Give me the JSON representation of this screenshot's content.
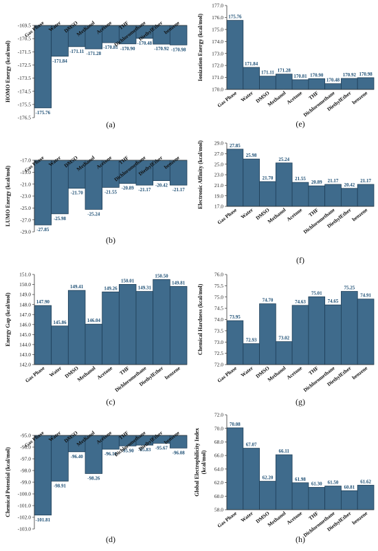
{
  "colors": {
    "bar": "#3f6b8c",
    "bar_edge": "#1f3f58",
    "label": "#1c4e74",
    "axis": "#333333"
  },
  "chart_data": [
    {
      "id": "a",
      "panel_label": "(a)",
      "type": "bar",
      "orientation": "down",
      "ylabel": "HOMO Energy (kcal/mol)",
      "categories": [
        "Gas Phase",
        "Water",
        "DMSO",
        "Methanol",
        "Acetone",
        "THF",
        "Dichloromethane",
        "DiethylEther",
        "benzene"
      ],
      "values": [
        -175.76,
        -171.84,
        -171.11,
        -171.28,
        -170.81,
        -170.9,
        -170.48,
        -170.92,
        -170.98
      ],
      "value_labels": [
        "-175.76",
        "-171.84",
        "-171.11",
        "-171.28",
        "-170.81",
        "-170.90",
        "-170.48",
        "-170.92",
        "-170.98"
      ],
      "ylim": [
        -176.5,
        -169.5
      ],
      "ticks": [
        "-169.5",
        "-170.5",
        "-171.5",
        "-172.5",
        "-173.5",
        "-174.5",
        "-175.5",
        "-176.5"
      ],
      "grid": false
    },
    {
      "id": "b",
      "panel_label": "(b)",
      "type": "bar",
      "orientation": "down",
      "ylabel": "LUMO Energy (kcal/mol)",
      "categories": [
        "Gas Phase",
        "Water",
        "DMSO",
        "Methanol",
        "Acetone",
        "THF",
        "Dichloromethane",
        "DiethylEther",
        "benzene"
      ],
      "values": [
        -27.85,
        -25.98,
        -21.7,
        -25.24,
        -21.55,
        -20.89,
        -21.17,
        -20.42,
        -21.17
      ],
      "value_labels": [
        "-27.85",
        "-25.98",
        "-21.70",
        "-25.24",
        "-21.55",
        "-20.89",
        "-21.17",
        "-20.42",
        "-21.17"
      ],
      "ylim": [
        -29.0,
        -17.0
      ],
      "ticks": [
        "-17.0",
        "-19.0",
        "-21.0",
        "-23.0",
        "-25.0",
        "-27.0",
        "-29.0"
      ],
      "grid": false
    },
    {
      "id": "c",
      "panel_label": "(c)",
      "type": "bar",
      "orientation": "up",
      "ylabel": "Energy Gap (kcal/mol)",
      "categories": [
        "Gas Phase",
        "Water",
        "DMSO",
        "Methanol",
        "Acetone",
        "THF",
        "Dichloromethane",
        "DiethylEther",
        "benzene"
      ],
      "values": [
        147.9,
        145.86,
        149.41,
        146.04,
        149.26,
        150.01,
        149.31,
        150.5,
        149.81
      ],
      "value_labels": [
        "147.90",
        "145.86",
        "149.41",
        "146.04",
        "149.26",
        "150.01",
        "149.31",
        "150.50",
        "149.81"
      ],
      "ylim": [
        142.0,
        151.0
      ],
      "ticks": [
        "142.0",
        "143.0",
        "144.0",
        "145.0",
        "146.0",
        "147.0",
        "148.0",
        "149.0",
        "150.0",
        "151.0"
      ],
      "grid": false
    },
    {
      "id": "d",
      "panel_label": "(d)",
      "type": "bar",
      "orientation": "down",
      "ylabel": "Chemical Potential (kcal/mol)",
      "categories": [
        "Gas Phase",
        "Water",
        "DMSO",
        "Methanol",
        "Acetone",
        "THF",
        "Dichloromethane",
        "DiethylEther",
        "benzene"
      ],
      "values": [
        -101.81,
        -98.91,
        -96.4,
        -98.26,
        -96.18,
        -95.9,
        -95.83,
        -95.67,
        -96.08
      ],
      "value_labels": [
        "-101.81",
        "-98.91",
        "-96.40",
        "-98.26",
        "-96.18",
        "-95.90",
        "-95.83",
        "-95.67",
        "-96.08"
      ],
      "ylim": [
        -103.0,
        -95.0
      ],
      "ticks": [
        "-95.0",
        "-96.0",
        "-97.0",
        "-98.0",
        "-99.0",
        "-100.0",
        "-101.0",
        "-102.0",
        "-103.0"
      ],
      "grid": false
    },
    {
      "id": "e",
      "panel_label": "(e)",
      "type": "bar",
      "orientation": "up",
      "ylabel": "Ionization Energy (kcal/mol)",
      "categories": [
        "Gas Phase",
        "Water",
        "DMSO",
        "Methanol",
        "Acetone",
        "THF",
        "Dichloromethane",
        "DiethylEther",
        "benzene"
      ],
      "values": [
        175.76,
        171.84,
        171.11,
        171.28,
        170.81,
        170.9,
        170.48,
        170.92,
        170.98
      ],
      "value_labels": [
        "175.76",
        "171.84",
        "171.11",
        "171.28",
        "170.81",
        "170.90",
        "170.48",
        "170.92",
        "170.98"
      ],
      "ylim": [
        170.0,
        177.0
      ],
      "ticks": [
        "170.0",
        "171.0",
        "172.0",
        "173.0",
        "174.0",
        "175.0",
        "176.0",
        "177.0"
      ],
      "grid": false
    },
    {
      "id": "f",
      "panel_label": "(f)",
      "type": "bar",
      "orientation": "up",
      "ylabel": "Electronic Affinity (kcal/mol)",
      "categories": [
        "Gas Phase",
        "Water",
        "DMSO",
        "Methanol",
        "Acetone",
        "THF",
        "Dichloromethane",
        "DiethylEther",
        "benzene"
      ],
      "values": [
        27.85,
        25.98,
        21.7,
        25.24,
        21.55,
        20.89,
        21.17,
        20.42,
        21.17
      ],
      "value_labels": [
        "27.85",
        "25.98",
        "21.70",
        "25.24",
        "21.55",
        "20.89",
        "21.17",
        "20.42",
        "21.17"
      ],
      "ylim": [
        17.0,
        29.0
      ],
      "ticks": [
        "17.0",
        "19.0",
        "21.0",
        "23.0",
        "25.0",
        "27.0",
        "29.0"
      ],
      "grid": false
    },
    {
      "id": "g",
      "panel_label": "(g)",
      "type": "bar",
      "orientation": "up",
      "ylabel": "Chemical Hardness (kcal/mol)",
      "categories": [
        "Gas Phase",
        "Water",
        "DMSO",
        "Methanol",
        "Acetone",
        "THF",
        "Dichloromethane",
        "DiethylEther",
        "benzene"
      ],
      "values": [
        73.95,
        72.93,
        74.7,
        73.02,
        74.63,
        75.01,
        74.65,
        75.25,
        74.91
      ],
      "value_labels": [
        "73.95",
        "72.93",
        "74.70",
        "73.02",
        "74.63",
        "75.01",
        "74.65",
        "75.25",
        "74.91"
      ],
      "ylim": [
        72.0,
        76.0
      ],
      "ticks": [
        "72.0",
        "72.5",
        "73.0",
        "73.5",
        "74.0",
        "74.5",
        "75.0",
        "75.5",
        "76.0"
      ],
      "grid": false
    },
    {
      "id": "h",
      "panel_label": "(h)",
      "type": "bar",
      "orientation": "up",
      "ylabel": "Global Electrophilicity Index (kcal/mol)",
      "ylabel_lines": [
        "Global Electrophilicity Index",
        "(kcal/mol)"
      ],
      "categories": [
        "Gas Phase",
        "Water",
        "DMSO",
        "Methanol",
        "Acetone",
        "THF",
        "Dichloromethane",
        "DiethylEther",
        "benzene"
      ],
      "values": [
        70.08,
        67.07,
        62.2,
        66.11,
        61.98,
        61.3,
        61.5,
        60.81,
        61.62
      ],
      "value_labels": [
        "70.08",
        "67.07",
        "62.20",
        "66.11",
        "61.98",
        "61.30",
        "61.50",
        "60.81",
        "61.62"
      ],
      "ylim": [
        58.0,
        72.0
      ],
      "ticks": [
        "58.0",
        "60.0",
        "62.0",
        "64.0",
        "66.0",
        "68.0",
        "70.0",
        "72.0"
      ],
      "grid": false
    }
  ]
}
